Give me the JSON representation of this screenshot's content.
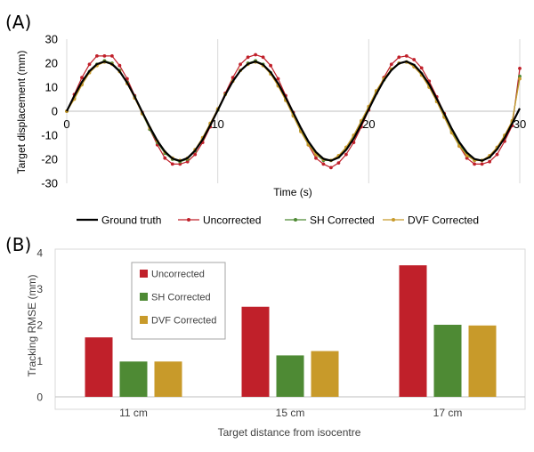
{
  "chart_data": [
    {
      "panel_label": "(A)",
      "type": "line",
      "xlabel": "Time (s)",
      "ylabel": "Target displacement (mm)",
      "xlim": [
        0,
        30
      ],
      "ylim": [
        -30,
        30
      ],
      "xticks": [
        0,
        10,
        20,
        30
      ],
      "yticks": [
        -30,
        -20,
        -10,
        0,
        10,
        20,
        30
      ],
      "grid": "vertical at x ticks",
      "legend_position": "bottom",
      "x": [
        0,
        0.5,
        1,
        1.5,
        2,
        2.5,
        3,
        3.5,
        4,
        4.5,
        5,
        5.5,
        6,
        6.5,
        7,
        7.5,
        8,
        8.5,
        9,
        9.5,
        10,
        10.5,
        11,
        11.5,
        12,
        12.5,
        13,
        13.5,
        14,
        14.5,
        15,
        15.5,
        16,
        16.5,
        17,
        17.5,
        18,
        18.5,
        19,
        19.5,
        20,
        20.5,
        21,
        21.5,
        22,
        22.5,
        23,
        23.5,
        24,
        24.5,
        25,
        25.5,
        26,
        26.5,
        27,
        27.5,
        28,
        28.5,
        29,
        29.5,
        30
      ],
      "series": [
        {
          "name": "Ground truth",
          "color": "#000000",
          "markers": false,
          "values": [
            0,
            6.4,
            12.2,
            16.7,
            19.6,
            20.7,
            19.6,
            16.6,
            11.9,
            6.1,
            -0.3,
            -6.6,
            -12.3,
            -16.8,
            -19.7,
            -20.7,
            -19.5,
            -16.4,
            -11.8,
            -5.9,
            0.4,
            6.8,
            12.5,
            16.9,
            19.7,
            20.7,
            19.4,
            16.2,
            11.6,
            5.7,
            -0.6,
            -6.9,
            -12.6,
            -17.0,
            -19.8,
            -20.6,
            -19.3,
            -16.1,
            -11.4,
            -5.5,
            0.8,
            7.1,
            12.8,
            17.1,
            19.9,
            20.7,
            19.3,
            15.9,
            11.2,
            5.2,
            -1.0,
            -7.3,
            -12.9,
            -17.2,
            -19.9,
            -20.6,
            -19.2,
            -15.8,
            -11.1,
            -5.1,
            1.2
          ]
        },
        {
          "name": "Uncorrected",
          "color": "#c0202a",
          "markers": true,
          "values": [
            0,
            7.0,
            14.0,
            19.5,
            23.0,
            23.0,
            23.0,
            19.0,
            13.5,
            6.5,
            -0.5,
            -7.5,
            -14.0,
            -19.5,
            -22.0,
            -22.0,
            -21.0,
            -18.0,
            -13.0,
            -6.5,
            0.5,
            7.5,
            14.0,
            19.5,
            22.5,
            23.5,
            22.5,
            19.0,
            13.5,
            6.5,
            -0.5,
            -7.5,
            -14.0,
            -19.5,
            -22.0,
            -23.5,
            -21.5,
            -18.0,
            -13.0,
            -6.5,
            0.5,
            7.5,
            14.0,
            19.5,
            22.5,
            23.0,
            21.5,
            18.0,
            12.5,
            6.0,
            -1.0,
            -8.0,
            -14.5,
            -19.5,
            -22.0,
            -22.0,
            -21.0,
            -18.0,
            -12.5,
            -6.0,
            17.8
          ]
        },
        {
          "name": "SH Corrected",
          "color": "#4e8a34",
          "markers": true,
          "values": [
            0,
            5.5,
            11.5,
            16.5,
            19.5,
            21.0,
            20.0,
            17.0,
            12.0,
            6.0,
            -1.0,
            -7.5,
            -13.0,
            -17.5,
            -20.0,
            -21.0,
            -20.0,
            -16.5,
            -11.5,
            -5.5,
            0.5,
            7.0,
            12.5,
            17.0,
            20.0,
            21.0,
            19.5,
            16.0,
            11.0,
            5.0,
            -1.5,
            -8.0,
            -13.5,
            -18.0,
            -20.5,
            -20.5,
            -19.0,
            -15.5,
            -10.5,
            -4.5,
            1.5,
            8.0,
            13.0,
            17.5,
            20.0,
            20.5,
            19.0,
            15.5,
            10.5,
            4.5,
            -2.0,
            -8.5,
            -14.0,
            -18.0,
            -20.5,
            -20.5,
            -19.0,
            -15.5,
            -10.5,
            -4.5,
            14.5
          ]
        },
        {
          "name": "DVF Corrected",
          "color": "#c89a2a",
          "markers": true,
          "values": [
            0,
            5.0,
            11.0,
            16.0,
            19.0,
            20.5,
            19.5,
            16.5,
            11.5,
            5.5,
            -1.0,
            -7.0,
            -12.5,
            -17.0,
            -19.5,
            -20.5,
            -19.5,
            -16.0,
            -11.0,
            -5.0,
            1.0,
            7.0,
            12.5,
            17.0,
            19.5,
            20.5,
            19.0,
            15.5,
            10.5,
            4.5,
            -2.0,
            -8.5,
            -14.0,
            -18.0,
            -20.0,
            -20.5,
            -18.5,
            -15.0,
            -10.0,
            -4.0,
            2.0,
            8.5,
            13.5,
            17.5,
            20.0,
            20.5,
            18.5,
            15.0,
            10.0,
            4.0,
            -2.5,
            -9.0,
            -14.5,
            -18.5,
            -20.5,
            -20.5,
            -18.5,
            -15.0,
            -10.0,
            -4.0,
            13.5
          ]
        }
      ]
    },
    {
      "panel_label": "(B)",
      "type": "bar",
      "xlabel": "Target distance from isocentre",
      "ylabel": "Tracking RMSE (mm)",
      "ylim": [
        0,
        4
      ],
      "yticks": [
        0,
        1,
        2,
        3,
        4
      ],
      "grid": "none",
      "legend_position": "top-left inside, boxed",
      "categories": [
        "11 cm",
        "15 cm",
        "17 cm"
      ],
      "series": [
        {
          "name": "Uncorrected",
          "color": "#c0202a",
          "values": [
            1.65,
            2.5,
            3.65
          ]
        },
        {
          "name": "SH Corrected",
          "color": "#4e8a34",
          "values": [
            0.98,
            1.15,
            2.0
          ]
        },
        {
          "name": "DVF Corrected",
          "color": "#c89a2a",
          "values": [
            0.98,
            1.27,
            1.98
          ]
        }
      ]
    }
  ]
}
